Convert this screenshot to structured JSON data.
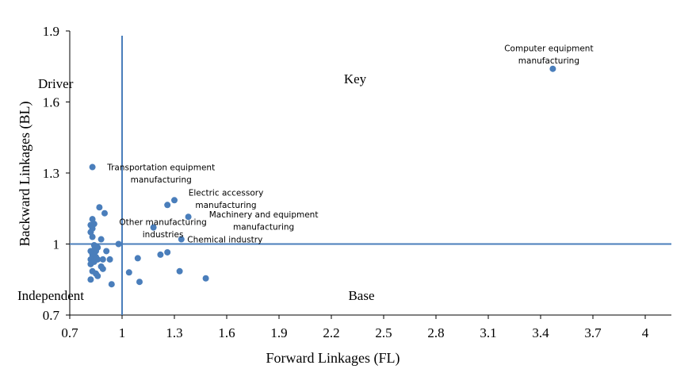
{
  "chart_data": {
    "type": "scatter",
    "xlabel": "Forward Linkages (FL)",
    "ylabel": "Backward Linkages (BL)",
    "xlim": [
      0.7,
      4.15
    ],
    "ylim": [
      0.7,
      1.9
    ],
    "xticks": [
      "0.7",
      "1",
      "1.3",
      "1.6",
      "1.9",
      "2.2",
      "2.5",
      "2.8",
      "3.1",
      "3.4",
      "3.7",
      "4"
    ],
    "yticks": [
      "0.7",
      "1",
      "1.3",
      "1.6",
      "1.9"
    ],
    "reference_lines": {
      "x": 1.0,
      "y": 1.0
    },
    "grid": false,
    "marker_color": "#4a7ebb",
    "quadrant_labels": {
      "driver": "Driver",
      "key": "Key",
      "independent": "Independent",
      "base": "Base"
    },
    "annotations": [
      {
        "x": 3.47,
        "y": 1.74,
        "lines": [
          "Computer equipment",
          "manufacturing"
        ]
      },
      {
        "x": 1.26,
        "y": 1.165,
        "lines": [
          "Transportation equipment",
          "manufacturing"
        ]
      },
      {
        "x": 1.3,
        "y": 1.185,
        "lines": [
          "Electric accessory",
          "manufacturing"
        ]
      },
      {
        "x": 1.18,
        "y": 1.07,
        "lines": [
          "Other manufacturing",
          "industries"
        ]
      },
      {
        "x": 1.38,
        "y": 1.115,
        "lines": [
          "Machinery and equipment",
          "manufacturing"
        ]
      },
      {
        "x": 1.34,
        "y": 1.02,
        "lines": [
          "Chemical industry"
        ]
      }
    ],
    "points": [
      [
        3.47,
        1.74
      ],
      [
        1.3,
        1.185
      ],
      [
        1.26,
        1.165
      ],
      [
        1.38,
        1.115
      ],
      [
        1.18,
        1.07
      ],
      [
        1.34,
        1.02
      ],
      [
        0.83,
        1.325
      ],
      [
        0.87,
        1.155
      ],
      [
        0.9,
        1.13
      ],
      [
        0.83,
        1.105
      ],
      [
        0.84,
        1.085
      ],
      [
        0.82,
        1.08
      ],
      [
        0.83,
        1.065
      ],
      [
        0.82,
        1.05
      ],
      [
        0.83,
        1.03
      ],
      [
        0.88,
        1.02
      ],
      [
        0.98,
        1.0
      ],
      [
        0.84,
        0.995
      ],
      [
        0.86,
        0.985
      ],
      [
        0.84,
        0.975
      ],
      [
        0.82,
        0.97
      ],
      [
        0.85,
        0.97
      ],
      [
        0.91,
        0.97
      ],
      [
        0.83,
        0.955
      ],
      [
        0.85,
        0.945
      ],
      [
        0.82,
        0.935
      ],
      [
        0.86,
        0.935
      ],
      [
        0.89,
        0.935
      ],
      [
        0.93,
        0.935
      ],
      [
        0.84,
        0.925
      ],
      [
        0.82,
        0.915
      ],
      [
        0.88,
        0.905
      ],
      [
        0.89,
        0.895
      ],
      [
        0.83,
        0.885
      ],
      [
        0.85,
        0.875
      ],
      [
        0.86,
        0.865
      ],
      [
        0.82,
        0.85
      ],
      [
        0.94,
        0.83
      ],
      [
        1.09,
        0.94
      ],
      [
        1.22,
        0.955
      ],
      [
        1.26,
        0.965
      ],
      [
        1.04,
        0.88
      ],
      [
        1.1,
        0.84
      ],
      [
        1.33,
        0.885
      ],
      [
        1.48,
        0.855
      ]
    ]
  }
}
